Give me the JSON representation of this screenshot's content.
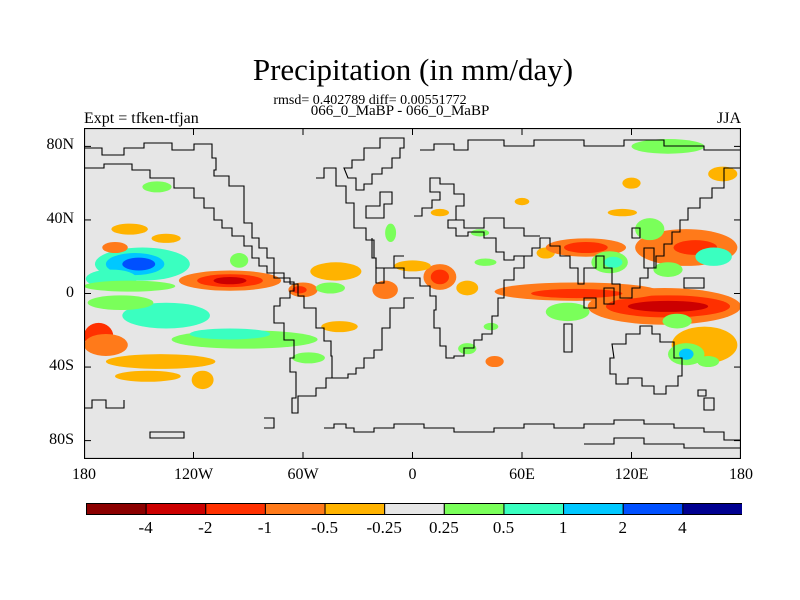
{
  "header": {
    "title": "Precipitation (in mm/day)",
    "stats": "rmsd= 0.402789 diff= 0.00551772",
    "cases": "066_0_MaBP - 066_0_MaBP",
    "expt": "Expt = tfken-tfjan",
    "season": "JJA"
  },
  "chart_data": {
    "type": "heatmap",
    "title": "Precipitation (in mm/day)",
    "subtitle": "rmsd= 0.402789 diff= 0.00551772",
    "xlim": [
      -180,
      180
    ],
    "ylim": [
      -90,
      90
    ],
    "x_ticks": [
      {
        "value": -180,
        "label": "180"
      },
      {
        "value": -120,
        "label": "120W"
      },
      {
        "value": -60,
        "label": "60W"
      },
      {
        "value": 0,
        "label": "0"
      },
      {
        "value": 60,
        "label": "60E"
      },
      {
        "value": 120,
        "label": "120E"
      },
      {
        "value": 180,
        "label": "180"
      }
    ],
    "y_ticks": [
      {
        "value": 80,
        "label": "80N"
      },
      {
        "value": 40,
        "label": "40N"
      },
      {
        "value": 0,
        "label": "0"
      },
      {
        "value": -40,
        "label": "40S"
      },
      {
        "value": -80,
        "label": "80S"
      }
    ],
    "colorbar": {
      "bounds": [
        -5,
        -4,
        -2,
        -1,
        -0.5,
        -0.25,
        0.25,
        0.5,
        1,
        2,
        4,
        5
      ],
      "labels": [
        "-4",
        "-2",
        "-1",
        "-0.5",
        "-0.25",
        "0.25",
        "0.5",
        "1",
        "2",
        "4"
      ],
      "colors": [
        "#8b0000",
        "#cc0000",
        "#ff3000",
        "#ff7a1a",
        "#ffb300",
        "#e6e6e6",
        "#7aff5a",
        "#3affc0",
        "#00c8ff",
        "#0050ff",
        "#000090"
      ]
    },
    "background_color": "#e6e6e6",
    "regions": [
      {
        "lon": -148,
        "lat": 16,
        "rlon": 26,
        "rlat": 9,
        "value": 0.7
      },
      {
        "lon": -152,
        "lat": 16,
        "rlon": 16,
        "rlat": 6,
        "value": 1.5
      },
      {
        "lon": -150,
        "lat": 16,
        "rlon": 9,
        "rlat": 3.5,
        "value": 3
      },
      {
        "lon": -165,
        "lat": 8,
        "rlon": 14,
        "rlat": 5,
        "value": 0.7
      },
      {
        "lon": -100,
        "lat": 7,
        "rlon": 28,
        "rlat": 5.5,
        "value": -0.7
      },
      {
        "lon": -100,
        "lat": 7,
        "rlon": 18,
        "rlat": 3.5,
        "value": -1.5
      },
      {
        "lon": -100,
        "lat": 7,
        "rlon": 9,
        "rlat": 2,
        "value": -3
      },
      {
        "lon": -155,
        "lat": 4,
        "rlon": 25,
        "rlat": 3,
        "value": 0.35
      },
      {
        "lon": -135,
        "lat": -12,
        "rlon": 24,
        "rlat": 7,
        "value": 0.7
      },
      {
        "lon": -160,
        "lat": -5,
        "rlon": 18,
        "rlat": 4,
        "value": 0.35
      },
      {
        "lon": -92,
        "lat": -25,
        "rlon": 40,
        "rlat": 5,
        "value": 0.35
      },
      {
        "lon": -100,
        "lat": -22,
        "rlon": 22,
        "rlat": 3,
        "value": 0.7
      },
      {
        "lon": -172,
        "lat": -23,
        "rlon": 8,
        "rlat": 7,
        "value": -1.5
      },
      {
        "lon": -168,
        "lat": -28,
        "rlon": 12,
        "rlat": 6,
        "value": -0.7
      },
      {
        "lon": -138,
        "lat": -37,
        "rlon": 30,
        "rlat": 4,
        "value": -0.35
      },
      {
        "lon": -145,
        "lat": -45,
        "rlon": 18,
        "rlat": 3,
        "value": -0.35
      },
      {
        "lon": -115,
        "lat": -47,
        "rlon": 6,
        "rlat": 5,
        "value": -0.35
      },
      {
        "lon": -163,
        "lat": 25,
        "rlon": 7,
        "rlat": 3,
        "value": -0.7
      },
      {
        "lon": -135,
        "lat": 30,
        "rlon": 8,
        "rlat": 2.5,
        "value": -0.35
      },
      {
        "lon": -155,
        "lat": 35,
        "rlon": 10,
        "rlat": 3,
        "value": -0.35
      },
      {
        "lon": -140,
        "lat": 58,
        "rlon": 8,
        "rlat": 3,
        "value": 0.35
      },
      {
        "lon": -95,
        "lat": 18,
        "rlon": 5,
        "rlat": 4,
        "value": 0.35
      },
      {
        "lon": -60,
        "lat": 2,
        "rlon": 8,
        "rlat": 4,
        "value": -0.7
      },
      {
        "lon": -62,
        "lat": 2,
        "rlon": 4,
        "rlat": 2,
        "value": -1.5
      },
      {
        "lon": -42,
        "lat": 12,
        "rlon": 14,
        "rlat": 5,
        "value": -0.35
      },
      {
        "lon": -45,
        "lat": 3,
        "rlon": 8,
        "rlat": 3,
        "value": 0.35
      },
      {
        "lon": -15,
        "lat": 2,
        "rlon": 7,
        "rlat": 5,
        "value": -0.7
      },
      {
        "lon": 15,
        "lat": 9,
        "rlon": 9,
        "rlat": 7,
        "value": -0.7
      },
      {
        "lon": 15,
        "lat": 9,
        "rlon": 5,
        "rlat": 4,
        "value": -1.5
      },
      {
        "lon": 0,
        "lat": 15,
        "rlon": 10,
        "rlat": 3,
        "value": -0.35
      },
      {
        "lon": 30,
        "lat": 3,
        "rlon": 6,
        "rlat": 4,
        "value": -0.35
      },
      {
        "lon": 40,
        "lat": 17,
        "rlon": 6,
        "rlat": 2,
        "value": 0.35
      },
      {
        "lon": -57,
        "lat": -35,
        "rlon": 9,
        "rlat": 3,
        "value": 0.35
      },
      {
        "lon": -40,
        "lat": -18,
        "rlon": 10,
        "rlat": 3,
        "value": -0.35
      },
      {
        "lon": 45,
        "lat": -37,
        "rlon": 5,
        "rlat": 3,
        "value": -0.7
      },
      {
        "lon": 30,
        "lat": -30,
        "rlon": 5,
        "rlat": 3,
        "value": 0.35
      },
      {
        "lon": 43,
        "lat": -18,
        "rlon": 4,
        "rlat": 2,
        "value": 0.35
      },
      {
        "lon": -12,
        "lat": 33,
        "rlon": 3,
        "rlat": 5,
        "value": 0.35
      },
      {
        "lon": 73,
        "lat": 22,
        "rlon": 5,
        "rlat": 3,
        "value": -0.35
      },
      {
        "lon": 60,
        "lat": 50,
        "rlon": 4,
        "rlat": 2,
        "value": -0.35
      },
      {
        "lon": 138,
        "lat": -7,
        "rlon": 42,
        "rlat": 10,
        "value": -0.7
      },
      {
        "lon": 140,
        "lat": -7,
        "rlon": 34,
        "rlat": 6,
        "value": -1.5
      },
      {
        "lon": 140,
        "lat": -7,
        "rlon": 22,
        "rlat": 3,
        "value": -3
      },
      {
        "lon": 90,
        "lat": 1,
        "rlon": 45,
        "rlat": 5,
        "value": -0.7
      },
      {
        "lon": 90,
        "lat": 0,
        "rlon": 25,
        "rlat": 2.5,
        "value": -1.5
      },
      {
        "lon": 95,
        "lat": 25,
        "rlon": 22,
        "rlat": 5,
        "value": -0.7
      },
      {
        "lon": 95,
        "lat": 25,
        "rlon": 12,
        "rlat": 3,
        "value": -1.5
      },
      {
        "lon": 150,
        "lat": 25,
        "rlon": 28,
        "rlat": 10,
        "value": -0.7
      },
      {
        "lon": 155,
        "lat": 25,
        "rlon": 12,
        "rlat": 4,
        "value": -1.5
      },
      {
        "lon": 130,
        "lat": 35,
        "rlon": 8,
        "rlat": 6,
        "value": 0.35
      },
      {
        "lon": 165,
        "lat": 20,
        "rlon": 10,
        "rlat": 5,
        "value": 0.7
      },
      {
        "lon": 140,
        "lat": 13,
        "rlon": 8,
        "rlat": 4,
        "value": 0.35
      },
      {
        "lon": 108,
        "lat": 17,
        "rlon": 10,
        "rlat": 6,
        "value": 0.35
      },
      {
        "lon": 110,
        "lat": 17,
        "rlon": 5,
        "rlat": 3,
        "value": 0.7
      },
      {
        "lon": 85,
        "lat": -10,
        "rlon": 12,
        "rlat": 5,
        "value": 0.35
      },
      {
        "lon": 160,
        "lat": -28,
        "rlon": 18,
        "rlat": 10,
        "value": -0.35
      },
      {
        "lon": 150,
        "lat": -33,
        "rlon": 10,
        "rlat": 6,
        "value": 0.35
      },
      {
        "lon": 150,
        "lat": -33,
        "rlon": 4,
        "rlat": 3,
        "value": 1.5
      },
      {
        "lon": 162,
        "lat": -37,
        "rlon": 6,
        "rlat": 3,
        "value": 0.35
      },
      {
        "lon": 145,
        "lat": -15,
        "rlon": 8,
        "rlat": 4,
        "value": 0.35
      },
      {
        "lon": 120,
        "lat": 60,
        "rlon": 5,
        "rlat": 3,
        "value": -0.35
      },
      {
        "lon": 140,
        "lat": 80,
        "rlon": 20,
        "rlat": 4,
        "value": 0.35
      },
      {
        "lon": 170,
        "lat": 65,
        "rlon": 8,
        "rlat": 4,
        "value": -0.35
      },
      {
        "lon": 115,
        "lat": 44,
        "rlon": 8,
        "rlat": 2,
        "value": -0.35
      },
      {
        "lon": 15,
        "lat": 44,
        "rlon": 5,
        "rlat": 2,
        "value": -0.35
      },
      {
        "lon": 37,
        "lat": 33,
        "rlon": 5,
        "rlat": 2,
        "value": 0.35
      }
    ]
  }
}
